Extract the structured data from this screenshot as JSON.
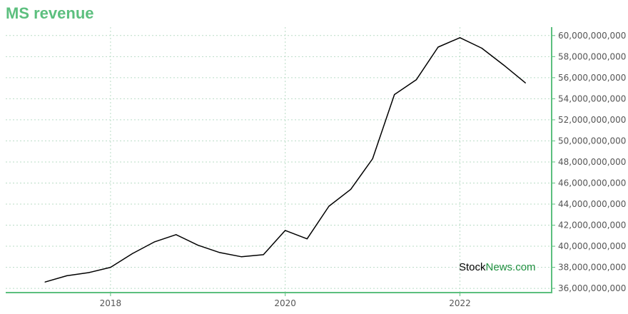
{
  "title": "MS revenue",
  "watermark": {
    "part1": "Stock",
    "part2": "News.com"
  },
  "colors": {
    "title": "#5cbf7e",
    "axis": "#5cbf7e",
    "grid": "#b9dcc6",
    "line": "#000000"
  },
  "chart_data": {
    "type": "line",
    "title": "MS revenue",
    "xlabel": "",
    "ylabel": "",
    "grid": true,
    "y_axis_position": "right",
    "xlim": [
      2016.8,
      2023.05
    ],
    "ylim": [
      35600000000,
      60800000000
    ],
    "x_ticks": [
      {
        "value": 2018,
        "label": "2018"
      },
      {
        "value": 2020,
        "label": "2020"
      },
      {
        "value": 2022,
        "label": "2022"
      }
    ],
    "y_ticks": [
      {
        "value": 36000000000,
        "label": "36,000,000,000"
      },
      {
        "value": 38000000000,
        "label": "38,000,000,000"
      },
      {
        "value": 40000000000,
        "label": "40,000,000,000"
      },
      {
        "value": 42000000000,
        "label": "42,000,000,000"
      },
      {
        "value": 44000000000,
        "label": "44,000,000,000"
      },
      {
        "value": 46000000000,
        "label": "46,000,000,000"
      },
      {
        "value": 48000000000,
        "label": "48,000,000,000"
      },
      {
        "value": 50000000000,
        "label": "50,000,000,000"
      },
      {
        "value": 52000000000,
        "label": "52,000,000,000"
      },
      {
        "value": 54000000000,
        "label": "54,000,000,000"
      },
      {
        "value": 56000000000,
        "label": "56,000,000,000"
      },
      {
        "value": 58000000000,
        "label": "58,000,000,000"
      },
      {
        "value": 60000000000,
        "label": "60,000,000,000"
      }
    ],
    "series": [
      {
        "x": [
          2017.25,
          2017.5,
          2017.75,
          2018.0,
          2018.25,
          2018.5,
          2018.75,
          2019.0,
          2019.25,
          2019.5,
          2019.75,
          2020.0,
          2020.25,
          2020.5,
          2020.75,
          2021.0,
          2021.25,
          2021.5,
          2021.75,
          2022.0,
          2022.25,
          2022.5,
          2022.75
        ],
        "y": [
          36600000000,
          37200000000,
          37500000000,
          38000000000,
          39300000000,
          40400000000,
          41100000000,
          40100000000,
          39400000000,
          39000000000,
          39200000000,
          41500000000,
          40700000000,
          43800000000,
          45400000000,
          48300000000,
          54400000000,
          55800000000,
          58900000000,
          59800000000,
          58800000000,
          57200000000,
          55500000000
        ]
      }
    ]
  }
}
